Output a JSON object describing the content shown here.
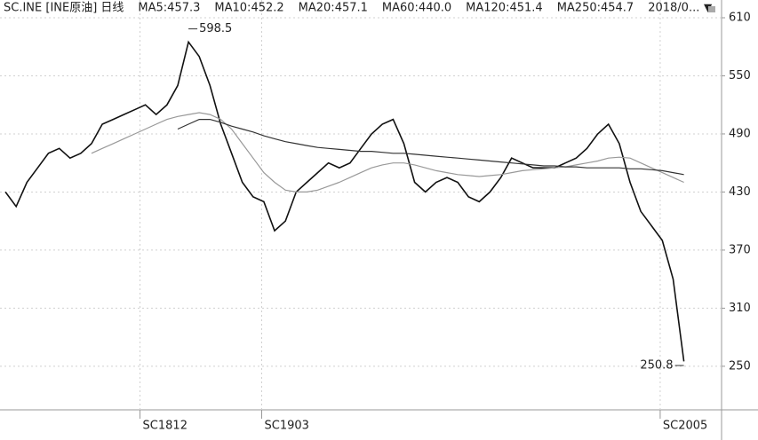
{
  "chart_data": {
    "type": "line",
    "header_labels": [
      {
        "text": "SC.INE  [INE原油]  日线",
        "color": "#222"
      },
      {
        "text": "MA5:457.3",
        "color": "#222"
      },
      {
        "text": "MA10:452.2",
        "color": "#222"
      },
      {
        "text": "MA20:457.1",
        "color": "#222"
      },
      {
        "text": "MA60:440.0",
        "color": "#aaa"
      },
      {
        "text": "MA120:451.4",
        "color": "#666"
      },
      {
        "text": "MA250:454.7",
        "color": "#222"
      },
      {
        "text": "2018/0...",
        "color": "#222"
      }
    ],
    "x": [
      0,
      1,
      2,
      3,
      4,
      5,
      6,
      7,
      8,
      9,
      10,
      11,
      12,
      13,
      14,
      15,
      16,
      17,
      18,
      19,
      20,
      21,
      22,
      23,
      24,
      25,
      26,
      27,
      28,
      29,
      30,
      31,
      32,
      33,
      34,
      35,
      36,
      37,
      38,
      39,
      40,
      41,
      42,
      43,
      44,
      45,
      46,
      47,
      48,
      49,
      50,
      51,
      52,
      53,
      54,
      55,
      56,
      57,
      58,
      59,
      60,
      61,
      62,
      63
    ],
    "series": [
      {
        "color": "#111",
        "values": [
          430,
          415,
          440,
          455,
          470,
          475,
          465,
          470,
          480,
          500,
          505,
          510,
          515,
          520,
          510,
          520,
          540,
          585,
          570,
          540,
          500,
          470,
          440,
          425,
          420,
          390,
          400,
          430,
          440,
          450,
          460,
          455,
          460,
          475,
          490,
          500,
          505,
          480,
          440,
          430,
          440,
          445,
          440,
          425,
          420,
          430,
          445,
          465,
          460,
          455,
          455,
          455,
          460,
          465,
          475,
          490,
          500,
          480,
          440,
          410,
          395,
          380,
          340,
          255
        ]
      },
      {
        "name": "MA60",
        "color": "#999",
        "values": [
          null,
          null,
          null,
          null,
          null,
          null,
          null,
          null,
          470,
          475,
          480,
          485,
          490,
          495,
          500,
          505,
          508,
          510,
          512,
          510,
          505,
          495,
          480,
          465,
          450,
          440,
          432,
          430,
          430,
          432,
          436,
          440,
          445,
          450,
          455,
          458,
          460,
          460,
          458,
          455,
          452,
          450,
          448,
          447,
          446,
          447,
          448,
          450,
          452,
          453,
          454,
          455,
          456,
          458,
          460,
          462,
          465,
          466,
          465,
          460,
          455,
          450,
          445,
          440
        ]
      },
      {
        "name": "MA250",
        "color": "#333",
        "values": [
          null,
          null,
          null,
          null,
          null,
          null,
          null,
          null,
          null,
          null,
          null,
          null,
          null,
          null,
          null,
          null,
          495,
          500,
          505,
          505,
          502,
          498,
          495,
          492,
          488,
          485,
          482,
          480,
          478,
          476,
          475,
          474,
          473,
          472,
          472,
          471,
          470,
          470,
          469,
          468,
          467,
          466,
          465,
          464,
          463,
          462,
          461,
          460,
          459,
          458,
          457,
          457,
          456,
          456,
          455,
          455,
          455,
          455,
          454,
          454,
          453,
          452,
          450,
          448
        ]
      }
    ],
    "annotations": [
      {
        "label": "598.5",
        "x": 17,
        "value": 598.5
      },
      {
        "label": "250.8",
        "x": 63,
        "value": 250.8
      }
    ],
    "xlim": [
      -0.5,
      66.5
    ],
    "xticks": [
      {
        "value": 12.5,
        "label": "SC1812"
      },
      {
        "value": 23.8,
        "label": "SC1903"
      },
      {
        "value": 60.8,
        "label": "SC2005"
      }
    ],
    "ylim": [
      205,
      610
    ],
    "yticks": [
      250,
      310,
      370,
      430,
      490,
      550,
      610
    ],
    "grid": true
  }
}
